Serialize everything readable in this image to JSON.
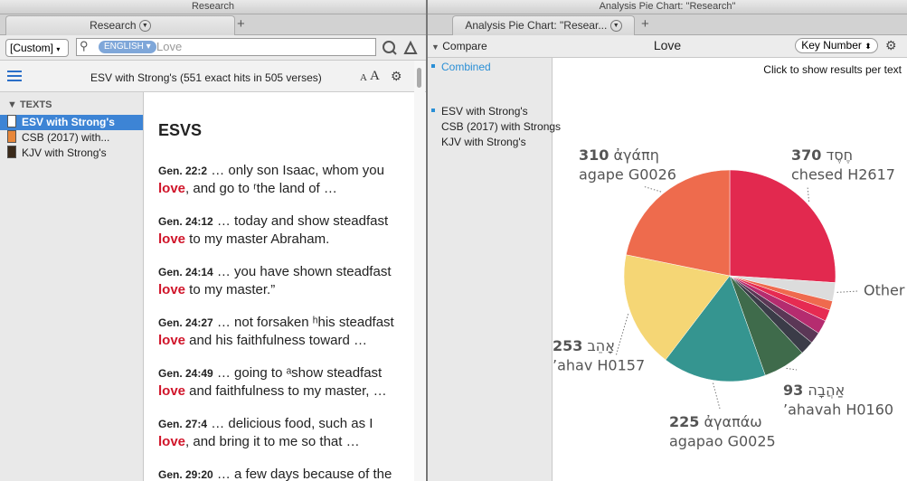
{
  "left_window": {
    "title": "Research",
    "tab": "Research",
    "search_mode": "[Custom]",
    "language": "ENGLISH",
    "query": "Love",
    "results_header": "ESV with Strong's (551 exact hits in 505 verses)",
    "font_small": "A",
    "font_large": "A",
    "texts_heading": "TEXTS",
    "texts": [
      "ESV with Strong's",
      "CSB (2017) with...",
      "KJV with Strong's"
    ],
    "text_title": "ESVS",
    "verses": [
      {
        "ref": "Gen. 22:2",
        "before": "… only son Isaac, whom you",
        "hit": "love",
        "after": ", and go to ʳthe land of …"
      },
      {
        "ref": "Gen. 24:12",
        "before": "… today and show steadfast",
        "hit": "love",
        "after": " to my master Abraham."
      },
      {
        "ref": "Gen. 24:14",
        "before": "… you have shown steadfast",
        "hit": "love",
        "after": " to my master.”"
      },
      {
        "ref": "Gen. 24:27",
        "before": "… not forsaken ʰhis steadfast",
        "hit": "love",
        "after": " and his faithfulness toward …"
      },
      {
        "ref": "Gen. 24:49",
        "before": "… going to ᵃshow steadfast",
        "hit": "love",
        "after": " and faithfulness to my master, …"
      },
      {
        "ref": "Gen. 27:4",
        "before": "… delicious food, such as I",
        "hit": "love",
        "after": ", and bring it to me so that …"
      },
      {
        "ref": "Gen. 29:20",
        "before": "… a few days because of the",
        "hit": null,
        "after": null
      }
    ]
  },
  "right_window": {
    "title": "Analysis Pie Chart: \"Research\"",
    "tab": "Analysis Pie Chart: \"Resear...",
    "compare": "Compare",
    "word": "Love",
    "sort": "Key Number",
    "hint": "Click to show results per text",
    "compare_items": [
      "Combined",
      "ESV with Strong's",
      "CSB (2017) with Strongs",
      "KJV with Strong's"
    ],
    "chart_data": {
      "type": "pie",
      "values": [
        370,
        40,
        20,
        25,
        30,
        25,
        30,
        93,
        225,
        253,
        310
      ],
      "colors": [
        "#e2294f",
        "#dcdcdc",
        "#ef6a4e",
        "#e62b52",
        "#b52c6f",
        "#5b3756",
        "#3b3c48",
        "#3f6b4b",
        "#359590",
        "#f5d675",
        "#ee6b4d"
      ],
      "words": [
        "חֶסֶד",
        "Other",
        null,
        null,
        null,
        null,
        null,
        "אַהֲבָה",
        "ἀγαπάω",
        "אָהֵב",
        "ἀγάπη"
      ],
      "glosses": [
        "chesed H2617",
        null,
        null,
        null,
        null,
        null,
        null,
        "’ahavah H0160",
        "agapao G0025",
        "’ahav H0157",
        "agape G0026"
      ]
    }
  }
}
